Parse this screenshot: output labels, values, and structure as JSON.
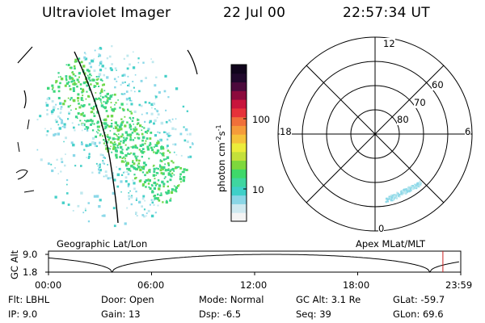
{
  "header": {
    "instrument": "Ultraviolet Imager",
    "date": "22 Jul 00",
    "time": "22:57:34 UT"
  },
  "geo_panel": {
    "label": "Geographic Lat/Lon"
  },
  "colorbar": {
    "unit": "photon cm",
    "unit_sup1": "-2",
    "unit_mid": "s",
    "unit_sup2": "-1",
    "ticks": [
      "100",
      "10"
    ],
    "colors": [
      "#f4f4f4",
      "#cfe9f0",
      "#8ad6e6",
      "#3fd0c8",
      "#3fd6a0",
      "#3fd86a",
      "#7ed83c",
      "#c4e03a",
      "#ecec3a",
      "#f5c23a",
      "#f59b3a",
      "#f0703a",
      "#e6323a",
      "#c8143c",
      "#8c0a3c",
      "#4c0a3c",
      "#20082c",
      "#10041c"
    ]
  },
  "polar_panel": {
    "label": "Apex MLat/MLT",
    "mlt_labels": {
      "top": "12",
      "left": "18",
      "right": "6",
      "bottom": "0"
    },
    "lat_labels": [
      "60",
      "70",
      "80"
    ]
  },
  "altitude_plot": {
    "ylabel": "GC Alt",
    "yticks": [
      "9.0",
      "1.8"
    ],
    "xticks": [
      "00:00",
      "06:00",
      "12:00",
      "18:00",
      "23:59"
    ],
    "marker_hour": 22.96,
    "colors": {
      "marker": "#cc2222"
    }
  },
  "status": {
    "row1": [
      {
        "key": "Flt:",
        "value": "LBHL"
      },
      {
        "key": "Door:",
        "value": "Open"
      },
      {
        "key": "Mode:",
        "value": "Normal"
      },
      {
        "key": "GC Alt:",
        "value": "3.1 Re"
      },
      {
        "key": "GLat:",
        "value": "-59.7"
      }
    ],
    "row2": [
      {
        "key": "IP:",
        "value": "9.0"
      },
      {
        "key": "Gain:",
        "value": "13"
      },
      {
        "key": "Dsp:",
        "value": "-6.5"
      },
      {
        "key": "Seq:",
        "value": "39"
      },
      {
        "key": "GLon:",
        "value": "69.6"
      }
    ]
  }
}
